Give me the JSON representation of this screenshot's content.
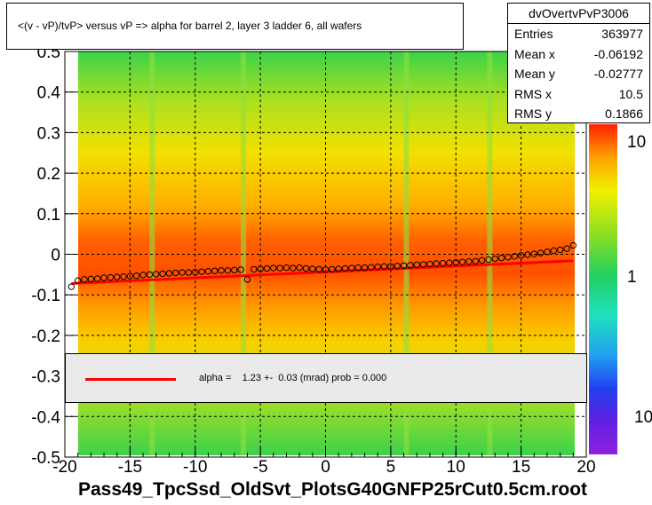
{
  "title": "<(v - vP)/tvP> versus   vP => alpha for barrel 2, layer 3 ladder 6, all wafers",
  "xtitle": "Pass49_TpcSsd_OldSvt_PlotsG40GNFP25rCut0.5cm.root",
  "stats": {
    "name": "dvOvertvPvP3006",
    "rows": [
      {
        "label": "Entries",
        "value": "363977"
      },
      {
        "label": "Mean x",
        "value": "-0.06192"
      },
      {
        "label": "Mean y",
        "value": "-0.02777"
      },
      {
        "label": "RMS x",
        "value": "10.5"
      },
      {
        "label": "RMS y",
        "value": "0.1866"
      }
    ]
  },
  "legend": {
    "text": "alpha =    1.23 +-  0.03 (mrad) prob = 0.000",
    "line_color": "#ff0000"
  },
  "colorbar": {
    "labels": [
      "10",
      "1",
      "10"
    ]
  },
  "chart_data": {
    "type": "heatmap",
    "xlim": [
      -20,
      20
    ],
    "ylim": [
      -0.5,
      0.5
    ],
    "x_ticks": [
      "-20",
      "-15",
      "-10",
      "-5",
      "0",
      "5",
      "10",
      "15",
      "20"
    ],
    "y_ticks": [
      "-0.5",
      "-0.4",
      "-0.3",
      "-0.2",
      "-0.1",
      "0",
      "0.1",
      "0.2",
      "0.3",
      "0.4",
      "0.5"
    ],
    "grid": true,
    "profile_points": {
      "x": [
        -19.5,
        -19,
        -18.5,
        -18,
        -17.5,
        -17,
        -16.5,
        -16,
        -15.5,
        -15,
        -14.5,
        -14,
        -13.5,
        -13,
        -12.5,
        -12,
        -11.5,
        -11,
        -10.5,
        -10,
        -9.5,
        -9,
        -8.5,
        -8,
        -7.5,
        -7,
        -6.5,
        -6,
        -5.5,
        -5,
        -4.5,
        -4,
        -3.5,
        -3,
        -2.5,
        -2,
        -1.5,
        -1,
        -0.5,
        0,
        0.5,
        1,
        1.5,
        2,
        2.5,
        3,
        3.5,
        4,
        4.5,
        5,
        5.5,
        6,
        6.5,
        7,
        7.5,
        8,
        8.5,
        9,
        9.5,
        10,
        10.5,
        11,
        11.5,
        12,
        12.5,
        13,
        13.5,
        14,
        14.5,
        15,
        15.5,
        16,
        16.5,
        17,
        17.5,
        18,
        18.5,
        19
      ],
      "y": [
        -0.08,
        -0.065,
        -0.062,
        -0.061,
        -0.06,
        -0.058,
        -0.057,
        -0.056,
        -0.055,
        -0.054,
        -0.053,
        -0.051,
        -0.05,
        -0.049,
        -0.048,
        -0.047,
        -0.046,
        -0.045,
        -0.045,
        -0.044,
        -0.043,
        -0.042,
        -0.041,
        -0.04,
        -0.04,
        -0.039,
        -0.038,
        -0.062,
        -0.037,
        -0.036,
        -0.035,
        -0.034,
        -0.034,
        -0.033,
        -0.034,
        -0.033,
        -0.035,
        -0.036,
        -0.037,
        -0.038,
        -0.037,
        -0.036,
        -0.035,
        -0.034,
        -0.033,
        -0.033,
        -0.032,
        -0.031,
        -0.03,
        -0.03,
        -0.029,
        -0.028,
        -0.027,
        -0.026,
        -0.025,
        -0.024,
        -0.023,
        -0.022,
        -0.021,
        -0.02,
        -0.019,
        -0.018,
        -0.017,
        -0.015,
        -0.013,
        -0.011,
        -0.009,
        -0.007,
        -0.005,
        -0.003,
        -0.001,
        0.001,
        0.003,
        0.006,
        0.009,
        0.011,
        0.014,
        0.022
      ]
    },
    "fit_line": {
      "x": [
        -19.5,
        19
      ],
      "y": [
        -0.072,
        -0.016
      ],
      "color": "#ff0000"
    }
  }
}
